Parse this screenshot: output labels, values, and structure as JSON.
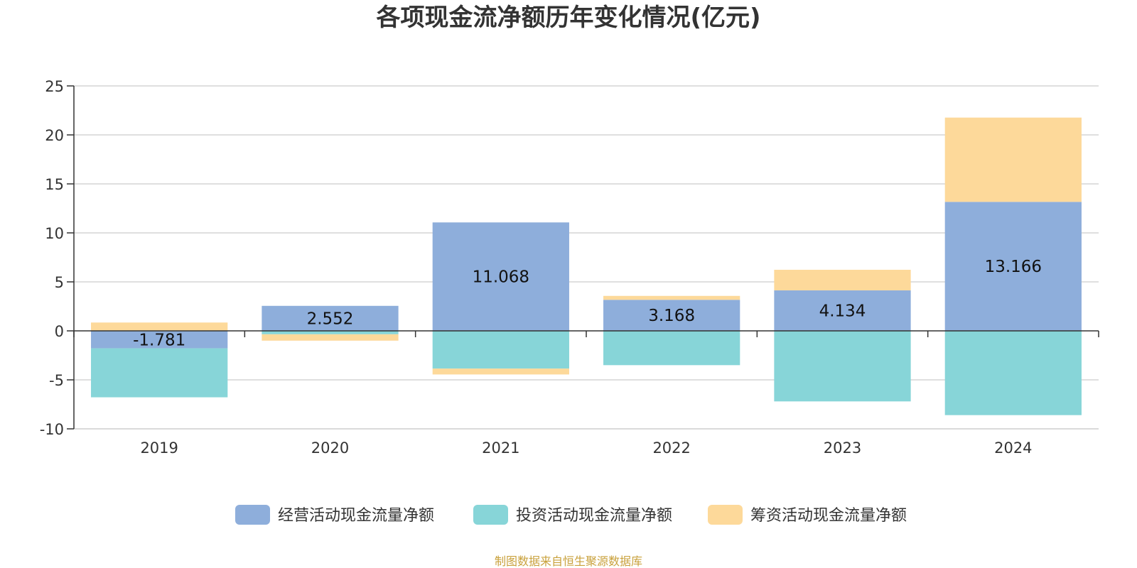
{
  "chart_data": {
    "type": "bar",
    "stacked": true,
    "title": "各项现金流净额历年变化情况(亿元)",
    "xlabel": "",
    "ylabel": "",
    "categories": [
      "2019",
      "2020",
      "2021",
      "2022",
      "2023",
      "2024"
    ],
    "ylim": [
      -10,
      25
    ],
    "yticks": [
      25,
      20,
      15,
      10,
      5,
      0,
      -5,
      -10
    ],
    "grid": true,
    "legend_position": "bottom",
    "series": [
      {
        "name": "经营活动现金流量净额",
        "color": "#8eaedb",
        "values": [
          -1.781,
          2.552,
          11.068,
          3.168,
          4.134,
          13.166
        ],
        "labels": [
          "-1.781",
          "2.552",
          "11.068",
          "3.168",
          "4.134",
          "13.166"
        ]
      },
      {
        "name": "投资活动现金流量净额",
        "color": "#87d5d8",
        "values": [
          -5.0,
          -0.35,
          -3.85,
          -3.5,
          -7.2,
          -8.6
        ]
      },
      {
        "name": "筹资活动现金流量净额",
        "color": "#fdd99a",
        "values": [
          0.85,
          -0.65,
          -0.6,
          0.4,
          2.1,
          8.6
        ]
      }
    ]
  },
  "source_note": "制图数据来自恒生聚源数据库",
  "colors": {
    "source_note": "#c9a13c",
    "axis": "#333333",
    "grid": "#cccccc"
  }
}
